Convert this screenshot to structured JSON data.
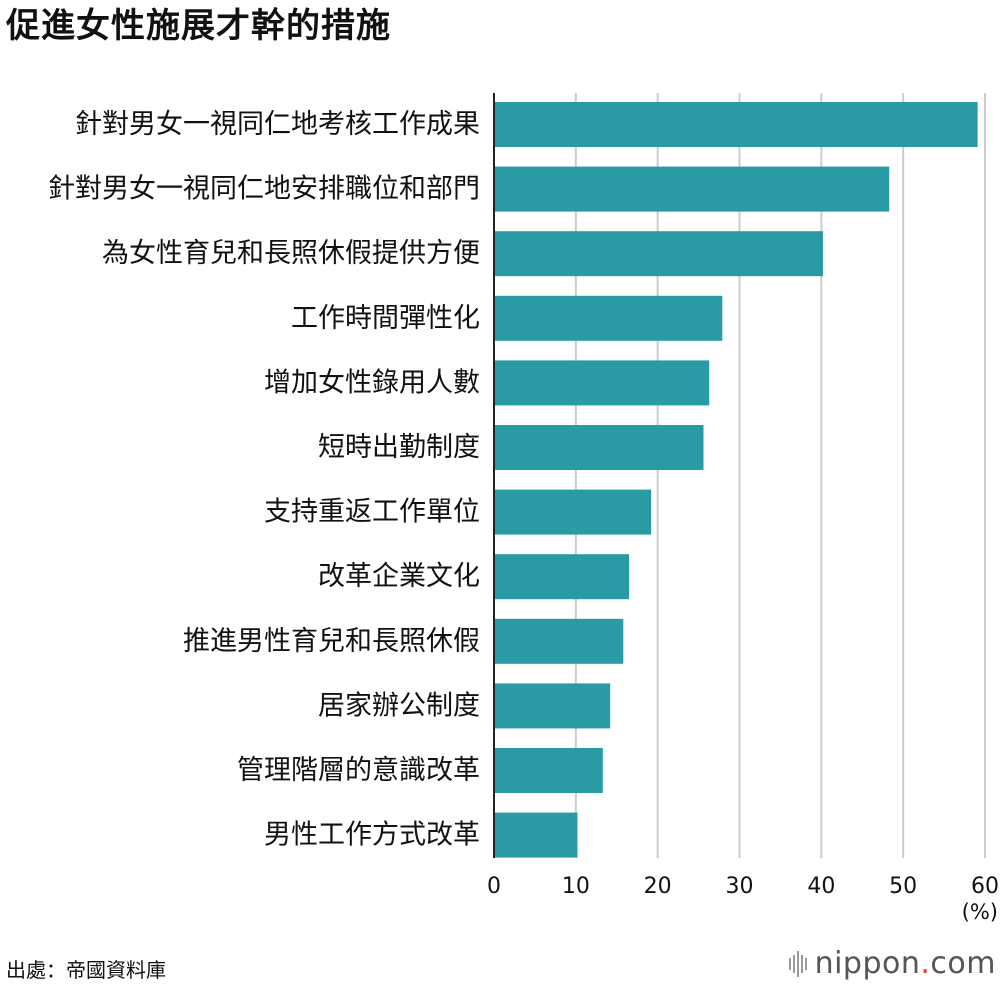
{
  "title": "促進女性施展才幹的措施",
  "chart_data": {
    "type": "bar",
    "orientation": "horizontal",
    "categories": [
      "針對男女一視同仁地考核工作成果",
      "針對男女一視同仁地安排職位和部門",
      "為女性育兒和長照休假提供方便",
      "工作時間彈性化",
      "增加女性錄用人數",
      "短時出勤制度",
      "支持重返工作單位",
      "改革企業文化",
      "推進男性育兒和長照休假",
      "居家辦公制度",
      "管理階層的意識改革",
      "男性工作方式改革"
    ],
    "values": [
      59.1,
      48.3,
      40.2,
      27.9,
      26.3,
      25.6,
      19.2,
      16.5,
      15.8,
      14.2,
      13.3,
      10.2
    ],
    "xlim": [
      0,
      60
    ],
    "xticks": [
      "0",
      "10",
      "20",
      "30",
      "40",
      "50",
      "60"
    ],
    "unit": "(%)",
    "grid": true,
    "bar_color": "#2a9aa5",
    "grid_color": "#cccccc"
  },
  "source": "出處：帝國資料庫",
  "logo": {
    "name": "nippon",
    "dot": ".",
    "suffix": "com"
  }
}
